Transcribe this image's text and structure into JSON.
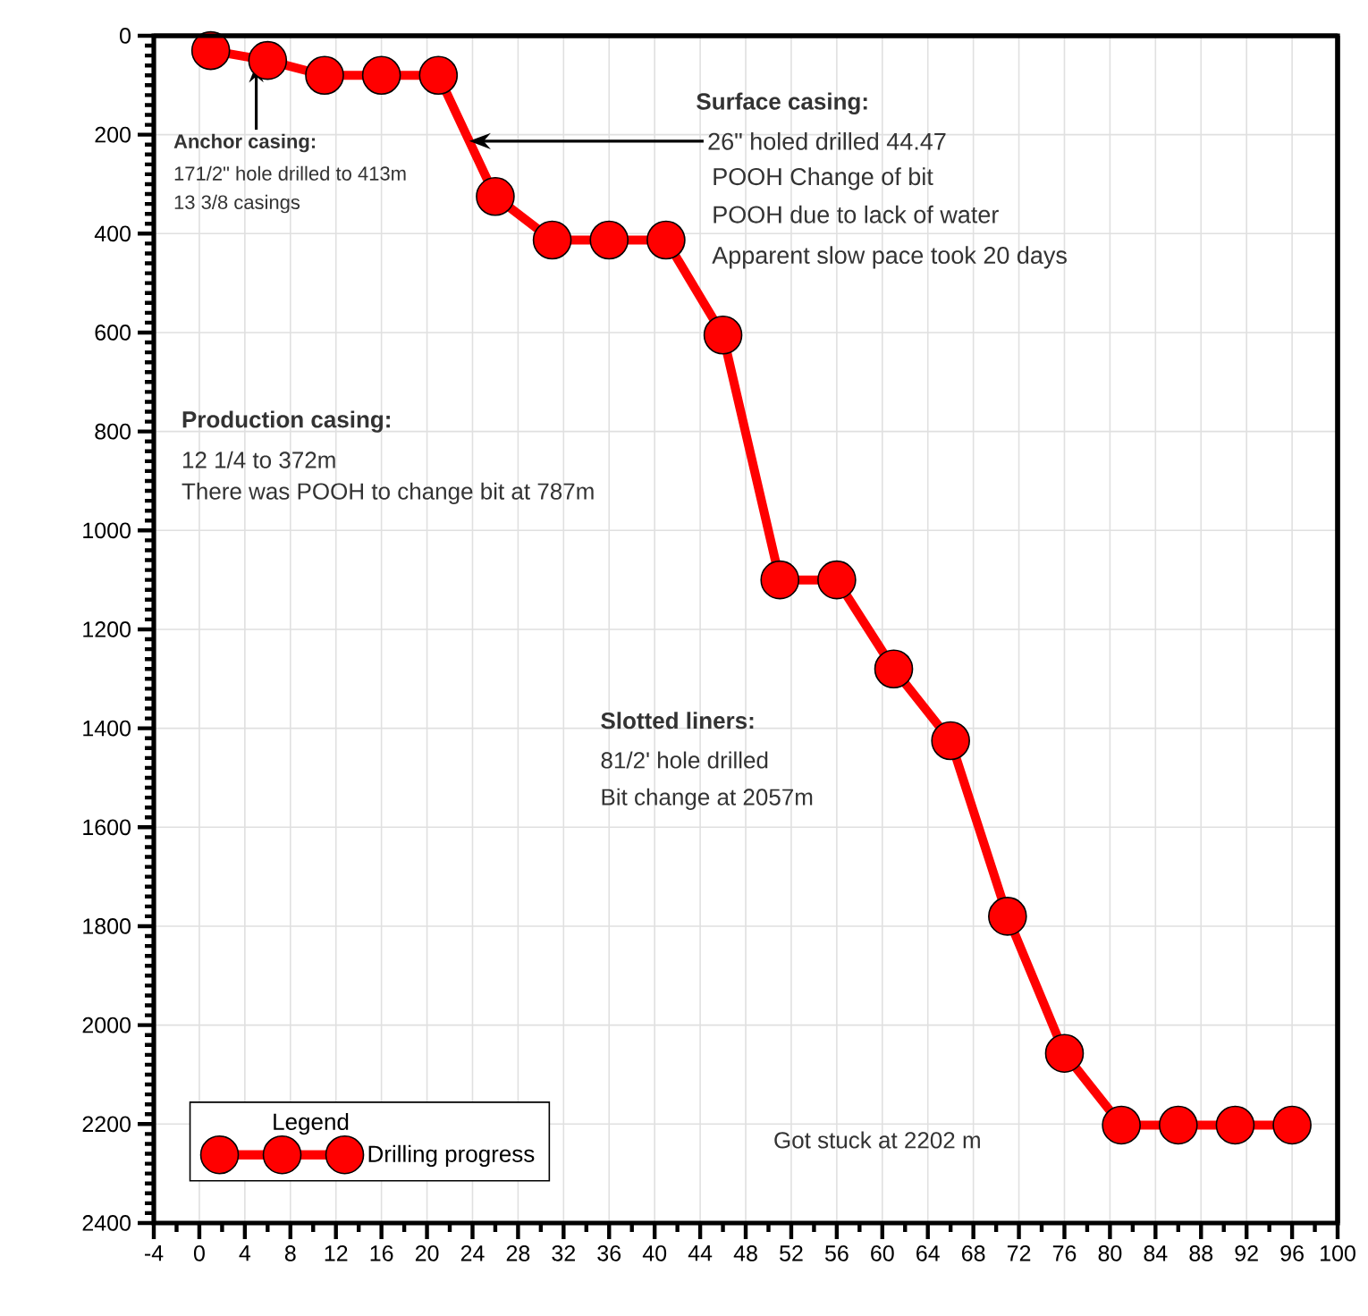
{
  "chart_data": {
    "type": "line",
    "x": [
      1,
      6,
      11,
      16,
      21,
      26,
      31,
      36,
      41,
      46,
      51,
      56,
      61,
      66,
      71,
      76,
      81,
      86,
      91,
      96
    ],
    "series": [
      {
        "name": "Drilling progress",
        "color": "#ff0000",
        "values": [
          30,
          50,
          80,
          80,
          80,
          325,
          413,
          413,
          413,
          605,
          1100,
          1100,
          1280,
          1425,
          1780,
          2057,
          2202,
          2202,
          2202,
          2202
        ]
      }
    ],
    "xlim": [
      -4,
      100
    ],
    "xticks": [
      -4,
      0,
      4,
      8,
      12,
      16,
      20,
      24,
      28,
      32,
      36,
      40,
      44,
      48,
      52,
      56,
      60,
      64,
      68,
      72,
      76,
      80,
      84,
      88,
      92,
      96,
      100
    ],
    "ylim": [
      2400,
      0
    ],
    "yticks": [
      0,
      200,
      400,
      600,
      800,
      1000,
      1200,
      1400,
      1600,
      1800,
      2000,
      2200,
      2400
    ],
    "grid": true,
    "legend": "bottom left",
    "legend_title": "Legend",
    "marker": "circle",
    "line_style": "solid",
    "annotations": [
      {
        "text": "Anchor casing:",
        "x": 5,
        "y": 58
      },
      "171/2\" hole drilled to 413m",
      "13 3/8 casings",
      "Surface casing:",
      {
        "text": "26\" holed drilled 44.47",
        "x": 23.7,
        "y": 213
      },
      "POOH Change of bit",
      "POOH due to lack of water",
      "Apparent slow pace took  20 days",
      "Production casing:",
      "12 1/4 to 372m",
      "There was POOH to change bit  at 787m",
      "Slotted liners:",
      "81/2' hole drilled",
      "Bit change at 2057m",
      "Got stuck at 2202 m"
    ]
  }
}
